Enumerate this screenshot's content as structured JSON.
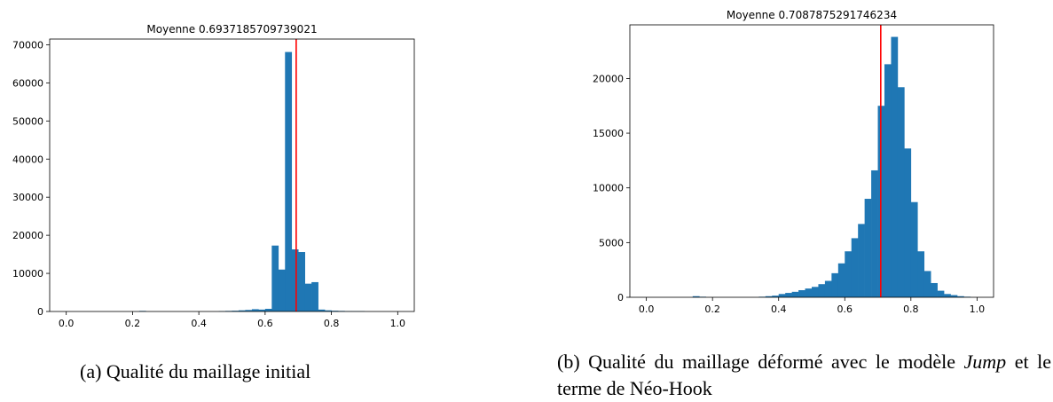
{
  "chart_data": [
    {
      "type": "bar",
      "title": "Moyenne 0.6937185709739021",
      "mean": 0.6937185709739021,
      "xlabel": "",
      "ylabel": "",
      "xlim": [
        -0.05,
        1.05
      ],
      "ylim": [
        0,
        71500
      ],
      "grid": false,
      "bar_color": "#1f77b4",
      "mean_line_color": "#ff0000",
      "xticks": [
        0.0,
        0.2,
        0.4,
        0.6,
        0.8,
        1.0
      ],
      "xtick_labels": [
        "0.0",
        "0.2",
        "0.4",
        "0.6",
        "0.8",
        "1.0"
      ],
      "yticks": [
        0,
        10000,
        20000,
        30000,
        40000,
        50000,
        60000,
        70000
      ],
      "ytick_labels": [
        "0",
        "10000",
        "20000",
        "30000",
        "40000",
        "50000",
        "60000",
        "70000"
      ],
      "bin_edges_start": 0.0,
      "bin_width": 0.02,
      "values": [
        0,
        0,
        0,
        0,
        0,
        0,
        0,
        0,
        0,
        0,
        0,
        150,
        0,
        0,
        0,
        0,
        0,
        0,
        0,
        0,
        0,
        0,
        0,
        100,
        150,
        200,
        300,
        400,
        600,
        500,
        700,
        17300,
        11000,
        68100,
        16300,
        15600,
        7300,
        7700,
        500,
        300,
        200,
        150,
        100,
        100,
        100,
        0,
        0,
        0,
        0,
        0
      ]
    },
    {
      "type": "bar",
      "title": "Moyenne 0.7087875291746234",
      "mean": 0.7087875291746234,
      "xlabel": "",
      "ylabel": "",
      "xlim": [
        -0.05,
        1.05
      ],
      "ylim": [
        0,
        24900
      ],
      "grid": false,
      "bar_color": "#1f77b4",
      "mean_line_color": "#ff0000",
      "xticks": [
        0.0,
        0.2,
        0.4,
        0.6,
        0.8,
        1.0
      ],
      "xtick_labels": [
        "0.0",
        "0.2",
        "0.4",
        "0.6",
        "0.8",
        "1.0"
      ],
      "yticks": [
        0,
        5000,
        10000,
        15000,
        20000
      ],
      "ytick_labels": [
        "0",
        "5000",
        "10000",
        "15000",
        "20000"
      ],
      "bin_edges_start": 0.0,
      "bin_width": 0.02,
      "values": [
        0,
        0,
        0,
        0,
        0,
        0,
        0,
        100,
        50,
        0,
        0,
        0,
        0,
        0,
        0,
        0,
        0,
        50,
        100,
        150,
        300,
        400,
        500,
        650,
        800,
        950,
        1200,
        1500,
        2200,
        3100,
        4200,
        5400,
        6700,
        9000,
        11600,
        17500,
        21300,
        23800,
        19200,
        13600,
        8700,
        4200,
        2400,
        1300,
        600,
        300,
        200,
        100,
        50,
        0
      ]
    }
  ],
  "captions": {
    "a": "(a) Qualité du maillage initial",
    "b_prefix": "(b) Qualité du maillage déformé avec le modèle ",
    "b_italic": "Jump",
    "b_suffix": " et le terme de Néo-Hook"
  }
}
